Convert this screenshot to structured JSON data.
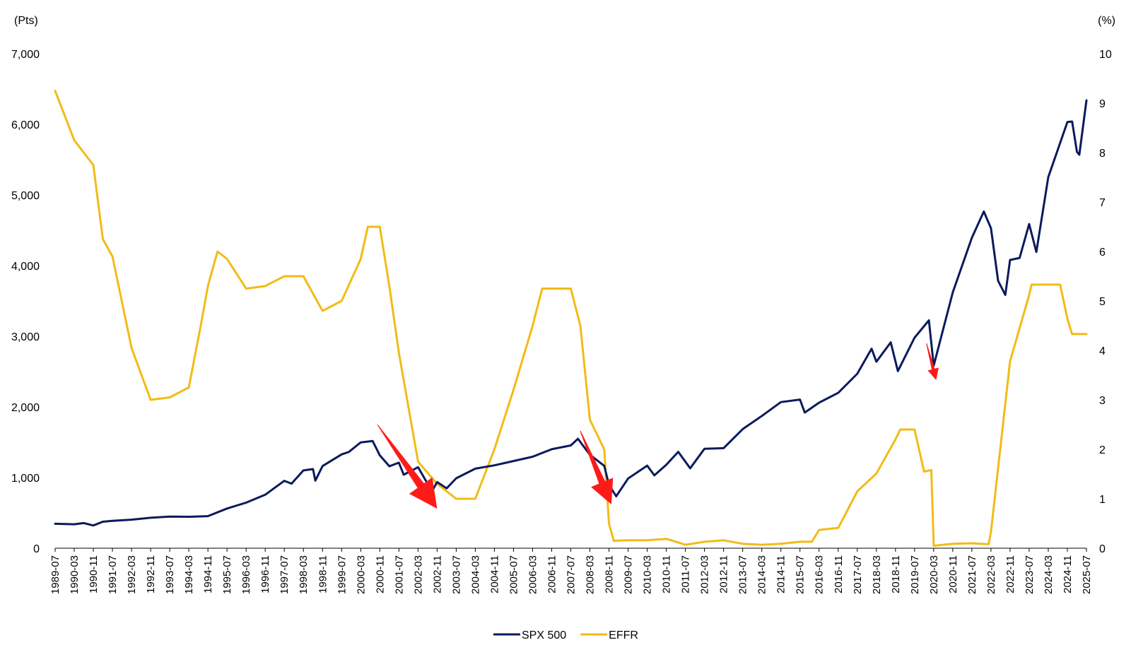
{
  "chart_data": {
    "type": "line",
    "title": "",
    "y_left": {
      "unit_label": "(Pts)",
      "ylim": [
        0,
        7000
      ],
      "ticks": [
        "0",
        "1,000",
        "2,000",
        "3,000",
        "4,000",
        "5,000",
        "6,000",
        "7,000"
      ]
    },
    "y_right": {
      "unit_label": "(%)",
      "ylim": [
        0,
        10
      ],
      "ticks": [
        "0",
        "1",
        "2",
        "3",
        "4",
        "5",
        "6",
        "7",
        "8",
        "9",
        "10"
      ]
    },
    "x_ticks": [
      "1989-07",
      "1990-03",
      "1990-11",
      "1991-07",
      "1992-03",
      "1992-11",
      "1993-07",
      "1994-03",
      "1994-11",
      "1995-07",
      "1996-03",
      "1996-11",
      "1997-07",
      "1998-03",
      "1998-11",
      "1999-07",
      "2000-03",
      "2000-11",
      "2001-07",
      "2002-03",
      "2002-11",
      "2003-07",
      "2004-03",
      "2004-11",
      "2005-07",
      "2006-03",
      "2006-11",
      "2007-07",
      "2008-03",
      "2008-11",
      "2009-07",
      "2010-03",
      "2010-11",
      "2011-07",
      "2012-03",
      "2012-11",
      "2013-07",
      "2014-03",
      "2014-11",
      "2015-07",
      "2016-03",
      "2016-11",
      "2017-07",
      "2018-03",
      "2018-11",
      "2019-07",
      "2020-03",
      "2020-11",
      "2021-07",
      "2022-03",
      "2022-11",
      "2023-07",
      "2024-03",
      "2024-11",
      "2025-07"
    ],
    "grid": false,
    "legend": {
      "placement": "bottom-center"
    },
    "series": [
      {
        "name": "SPX 500",
        "axis": "left",
        "color": "#0b1a5c",
        "points": [
          [
            "1989-07",
            346
          ],
          [
            "1990-03",
            339
          ],
          [
            "1990-07",
            356
          ],
          [
            "1990-11",
            322
          ],
          [
            "1991-03",
            375
          ],
          [
            "1991-07",
            387
          ],
          [
            "1992-03",
            404
          ],
          [
            "1992-11",
            431
          ],
          [
            "1993-07",
            448
          ],
          [
            "1994-03",
            445
          ],
          [
            "1994-11",
            454
          ],
          [
            "1995-07",
            562
          ],
          [
            "1996-03",
            645
          ],
          [
            "1996-11",
            757
          ],
          [
            "1997-07",
            954
          ],
          [
            "1997-10",
            914
          ],
          [
            "1998-03",
            1101
          ],
          [
            "1998-07",
            1120
          ],
          [
            "1998-08",
            957
          ],
          [
            "1998-11",
            1163
          ],
          [
            "1999-07",
            1328
          ],
          [
            "1999-10",
            1362
          ],
          [
            "2000-03",
            1498
          ],
          [
            "2000-08",
            1517
          ],
          [
            "2000-11",
            1315
          ],
          [
            "2001-03",
            1160
          ],
          [
            "2001-07",
            1211
          ],
          [
            "2001-09",
            1040
          ],
          [
            "2002-03",
            1147
          ],
          [
            "2002-07",
            912
          ],
          [
            "2002-09",
            815
          ],
          [
            "2002-11",
            936
          ],
          [
            "2003-03",
            848
          ],
          [
            "2003-07",
            990
          ],
          [
            "2004-03",
            1126
          ],
          [
            "2004-11",
            1173
          ],
          [
            "2005-07",
            1234
          ],
          [
            "2006-03",
            1295
          ],
          [
            "2006-11",
            1401
          ],
          [
            "2007-07",
            1455
          ],
          [
            "2007-10",
            1549
          ],
          [
            "2008-03",
            1323
          ],
          [
            "2008-09",
            1166
          ],
          [
            "2008-11",
            896
          ],
          [
            "2009-02",
            735
          ],
          [
            "2009-07",
            987
          ],
          [
            "2010-03",
            1169
          ],
          [
            "2010-06",
            1031
          ],
          [
            "2010-11",
            1181
          ],
          [
            "2011-04",
            1364
          ],
          [
            "2011-09",
            1131
          ],
          [
            "2012-03",
            1408
          ],
          [
            "2012-11",
            1416
          ],
          [
            "2013-07",
            1686
          ],
          [
            "2014-03",
            1872
          ],
          [
            "2014-11",
            2068
          ],
          [
            "2015-07",
            2104
          ],
          [
            "2015-09",
            1920
          ],
          [
            "2016-03",
            2060
          ],
          [
            "2016-11",
            2199
          ],
          [
            "2017-07",
            2470
          ],
          [
            "2018-01",
            2824
          ],
          [
            "2018-03",
            2640
          ],
          [
            "2018-09",
            2914
          ],
          [
            "2018-12",
            2507
          ],
          [
            "2019-07",
            2980
          ],
          [
            "2020-01",
            3226
          ],
          [
            "2020-03",
            2585
          ],
          [
            "2020-11",
            3622
          ],
          [
            "2021-07",
            4395
          ],
          [
            "2021-12",
            4766
          ],
          [
            "2022-03",
            4530
          ],
          [
            "2022-06",
            3785
          ],
          [
            "2022-09",
            3586
          ],
          [
            "2022-11",
            4080
          ],
          [
            "2023-03",
            4109
          ],
          [
            "2023-07",
            4589
          ],
          [
            "2023-10",
            4194
          ],
          [
            "2024-03",
            5254
          ],
          [
            "2024-11",
            6032
          ],
          [
            "2025-01",
            6040
          ],
          [
            "2025-03",
            5612
          ],
          [
            "2025-04",
            5570
          ],
          [
            "2025-07",
            6340
          ]
        ]
      },
      {
        "name": "EFFR",
        "axis": "right",
        "color": "#f2bb16",
        "points": [
          [
            "1989-07",
            9.25
          ],
          [
            "1990-03",
            8.25
          ],
          [
            "1990-11",
            7.75
          ],
          [
            "1991-03",
            6.25
          ],
          [
            "1991-07",
            5.9
          ],
          [
            "1992-03",
            4.05
          ],
          [
            "1992-11",
            3.0
          ],
          [
            "1993-07",
            3.05
          ],
          [
            "1994-03",
            3.25
          ],
          [
            "1994-08",
            4.5
          ],
          [
            "1994-11",
            5.3
          ],
          [
            "1995-03",
            6.0
          ],
          [
            "1995-07",
            5.85
          ],
          [
            "1996-03",
            5.25
          ],
          [
            "1996-11",
            5.3
          ],
          [
            "1997-07",
            5.5
          ],
          [
            "1998-03",
            5.5
          ],
          [
            "1998-11",
            4.8
          ],
          [
            "1999-07",
            5.0
          ],
          [
            "2000-03",
            5.85
          ],
          [
            "2000-06",
            6.5
          ],
          [
            "2000-11",
            6.5
          ],
          [
            "2001-03",
            5.3
          ],
          [
            "2001-07",
            3.95
          ],
          [
            "2002-03",
            1.75
          ],
          [
            "2002-11",
            1.3
          ],
          [
            "2003-07",
            1.0
          ],
          [
            "2004-03",
            1.0
          ],
          [
            "2004-11",
            2.0
          ],
          [
            "2005-07",
            3.2
          ],
          [
            "2006-03",
            4.5
          ],
          [
            "2006-07",
            5.25
          ],
          [
            "2006-11",
            5.25
          ],
          [
            "2007-07",
            5.25
          ],
          [
            "2007-11",
            4.5
          ],
          [
            "2008-03",
            2.6
          ],
          [
            "2008-09",
            2.0
          ],
          [
            "2008-11",
            0.5
          ],
          [
            "2009-01",
            0.15
          ],
          [
            "2009-07",
            0.16
          ],
          [
            "2010-03",
            0.16
          ],
          [
            "2010-11",
            0.19
          ],
          [
            "2011-07",
            0.07
          ],
          [
            "2012-03",
            0.13
          ],
          [
            "2012-11",
            0.16
          ],
          [
            "2013-07",
            0.09
          ],
          [
            "2014-03",
            0.07
          ],
          [
            "2014-11",
            0.09
          ],
          [
            "2015-07",
            0.13
          ],
          [
            "2015-12",
            0.13
          ],
          [
            "2016-03",
            0.37
          ],
          [
            "2016-11",
            0.41
          ],
          [
            "2017-07",
            1.15
          ],
          [
            "2018-03",
            1.51
          ],
          [
            "2018-11",
            2.2
          ],
          [
            "2019-01",
            2.4
          ],
          [
            "2019-07",
            2.4
          ],
          [
            "2019-11",
            1.55
          ],
          [
            "2020-02",
            1.58
          ],
          [
            "2020-03",
            0.05
          ],
          [
            "2020-11",
            0.09
          ],
          [
            "2021-07",
            0.1
          ],
          [
            "2022-02",
            0.08
          ],
          [
            "2022-03",
            0.33
          ],
          [
            "2022-11",
            3.78
          ],
          [
            "2023-07",
            5.12
          ],
          [
            "2023-08",
            5.33
          ],
          [
            "2024-03",
            5.33
          ],
          [
            "2024-08",
            5.33
          ],
          [
            "2024-11",
            4.64
          ],
          [
            "2025-01",
            4.33
          ],
          [
            "2025-07",
            4.33
          ]
        ]
      }
    ],
    "annotations": [
      {
        "kind": "arrow",
        "color": "#ff1a1a",
        "from": {
          "x": "2000-10",
          "y": 1750
        },
        "to": {
          "x": "2002-11",
          "y": 560
        }
      },
      {
        "kind": "arrow",
        "color": "#ff1a1a",
        "from": {
          "x": "2007-11",
          "y": 1660
        },
        "to": {
          "x": "2008-12",
          "y": 620
        }
      },
      {
        "kind": "arrow",
        "color": "#ff1a1a",
        "from": {
          "x": "2019-12",
          "y": 2900
        },
        "to": {
          "x": "2020-04",
          "y": 2380
        }
      }
    ]
  }
}
